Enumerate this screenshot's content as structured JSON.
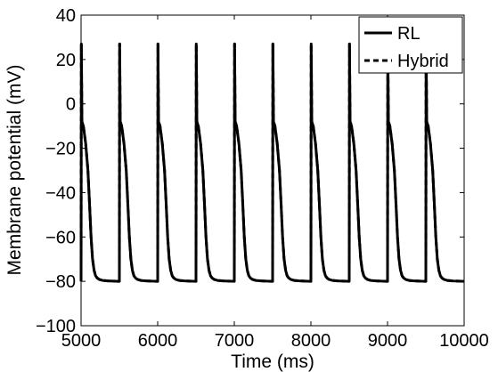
{
  "chart_data": {
    "type": "line",
    "title": "",
    "xlabel": "Time (ms)",
    "ylabel": "Membrane potential (mV)",
    "xlim": [
      5000,
      10000
    ],
    "ylim": [
      -100,
      40
    ],
    "xticks": [
      5000,
      6000,
      7000,
      8000,
      9000,
      10000
    ],
    "yticks": [
      -100,
      -80,
      -60,
      -40,
      -20,
      0,
      20,
      40
    ],
    "grid": false,
    "legend": {
      "position": "top-right",
      "entries": [
        {
          "label": "RL",
          "style": "solid"
        },
        {
          "label": "Hybrid",
          "style": "dashed"
        }
      ]
    },
    "pacing_period_ms": 500,
    "upstroke_times_ms": [
      5000,
      5500,
      6000,
      6500,
      7000,
      7500,
      8000,
      8500,
      9000,
      9500
    ],
    "action_potential_shape": {
      "t_offset_ms": [
        0,
        3,
        12,
        30,
        60,
        90,
        110,
        130,
        150,
        170,
        190,
        210,
        240,
        280,
        350,
        420,
        500
      ],
      "v_mv": [
        -80,
        27,
        -8,
        -10,
        -18,
        -30,
        -45,
        -60,
        -70,
        -75,
        -77.5,
        -78.5,
        -79.2,
        -79.6,
        -79.8,
        -79.9,
        -80
      ]
    },
    "series": [
      {
        "name": "RL",
        "color": "#000000",
        "dash": "solid"
      },
      {
        "name": "Hybrid",
        "color": "#000000",
        "dash": "dashed"
      }
    ]
  }
}
